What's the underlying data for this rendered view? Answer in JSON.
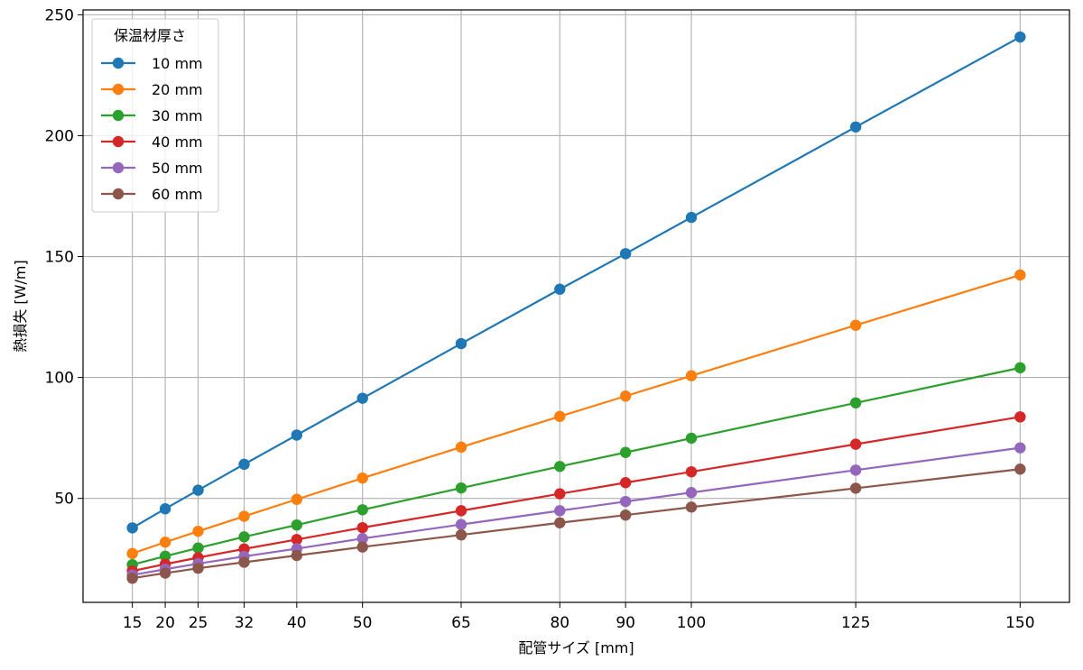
{
  "chart_data": {
    "type": "line",
    "title": "",
    "xlabel": "配管サイズ [mm]",
    "ylabel": "熱損失 [W/m]",
    "x": [
      15,
      20,
      25,
      32,
      40,
      50,
      65,
      80,
      90,
      100,
      125,
      150
    ],
    "xticks": [
      "15",
      "20",
      "25",
      "32",
      "40",
      "50",
      "65",
      "80",
      "90",
      "100",
      "125",
      "150"
    ],
    "yticks": [
      "50",
      "100",
      "150",
      "200",
      "250"
    ],
    "ylim": [
      7,
      252
    ],
    "xlim": [
      7.5,
      157.5
    ],
    "grid": true,
    "legend": {
      "title": "保温材厚さ",
      "position": "top-left"
    },
    "series": [
      {
        "name": "10 mm",
        "color": "#1f77b4",
        "values": [
          37.8,
          45.7,
          53.4,
          64.1,
          76.2,
          91.4,
          114.0,
          136.5,
          151.2,
          166.2,
          203.6,
          240.8
        ]
      },
      {
        "name": "20 mm",
        "color": "#ff7f0e",
        "values": [
          27.2,
          31.9,
          36.4,
          42.6,
          49.6,
          58.4,
          71.2,
          83.9,
          92.3,
          100.7,
          121.6,
          142.4
        ]
      },
      {
        "name": "30 mm",
        "color": "#2ca02c",
        "values": [
          22.6,
          26.1,
          29.5,
          34.1,
          39.0,
          45.3,
          54.3,
          63.2,
          69.0,
          74.9,
          89.5,
          104.0
        ]
      },
      {
        "name": "40 mm",
        "color": "#d62728",
        "values": [
          20.0,
          22.8,
          25.5,
          29.1,
          33.0,
          37.9,
          44.9,
          51.9,
          56.5,
          61.0,
          72.4,
          83.7
        ]
      },
      {
        "name": "50 mm",
        "color": "#9467bd",
        "values": [
          18.3,
          20.7,
          23.0,
          26.0,
          29.2,
          33.4,
          39.2,
          44.9,
          48.7,
          52.4,
          61.7,
          70.9
        ]
      },
      {
        "name": "60 mm",
        "color": "#8c564b",
        "values": [
          17.0,
          19.1,
          21.1,
          23.6,
          26.4,
          29.9,
          34.9,
          39.9,
          43.1,
          46.4,
          54.2,
          62.1
        ]
      }
    ]
  }
}
